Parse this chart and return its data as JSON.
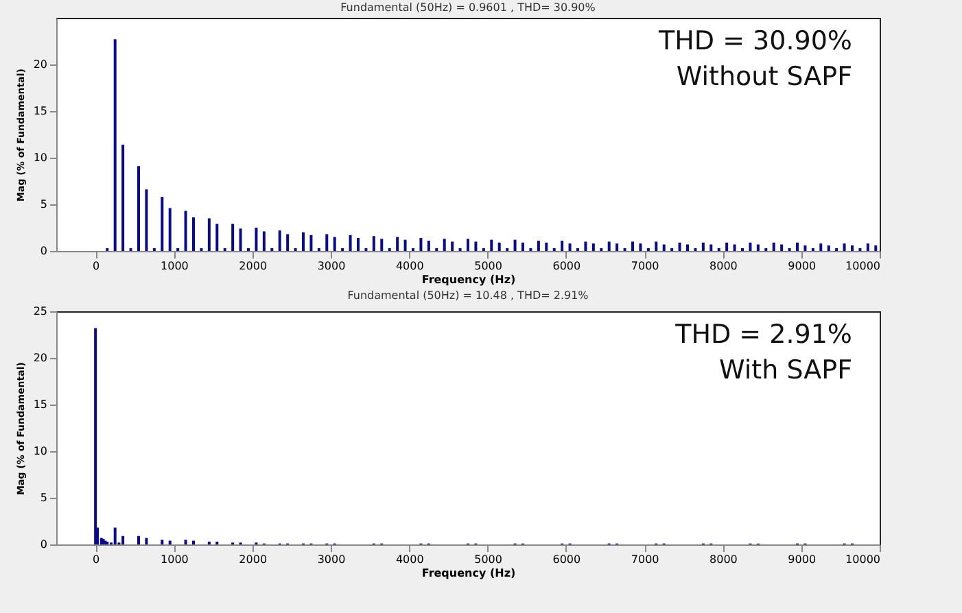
{
  "chart_data": [
    {
      "type": "bar",
      "title": "Fundamental (50Hz) = 0.9601 , THD= 30.90%",
      "xlabel": "Frequency (Hz)",
      "ylabel": "Mag (% of Fundamental)",
      "color": "#0a0a8c",
      "x": [
        150,
        250,
        350,
        450,
        550,
        650,
        750,
        850,
        950,
        1050,
        1150,
        1250,
        1350,
        1450,
        1550,
        1650,
        1750,
        1850,
        1950,
        2050,
        2150,
        2250,
        2350,
        2450,
        2550,
        2650,
        2750,
        2850,
        2950,
        3050,
        3150,
        3250,
        3350,
        3450,
        3550,
        3650,
        3750,
        3850,
        3950,
        4050,
        4150,
        4250,
        4350,
        4450,
        4550,
        4650,
        4750,
        4850,
        4950,
        5050,
        5150,
        5250,
        5350,
        5450,
        5550,
        5650,
        5750,
        5850,
        5950,
        6050,
        6150,
        6250,
        6350,
        6450,
        6550,
        6650,
        6750,
        6850,
        6950,
        7050,
        7150,
        7250,
        7350,
        7450,
        7550,
        7650,
        7750,
        7850,
        7950,
        8050,
        8150,
        8250,
        8350,
        8450,
        8550,
        8650,
        8750,
        8850,
        8950,
        9050,
        9150,
        9250,
        9350,
        9450,
        9550,
        9650,
        9750,
        9850,
        9950
      ],
      "values": [
        0.3,
        22.7,
        11.4,
        0.3,
        9.1,
        6.6,
        0.3,
        5.8,
        4.6,
        0.3,
        4.3,
        3.6,
        0.3,
        3.5,
        2.9,
        0.3,
        2.9,
        2.4,
        0.3,
        2.5,
        2.1,
        0.3,
        2.2,
        1.8,
        0.3,
        2.0,
        1.7,
        0.3,
        1.8,
        1.5,
        0.3,
        1.7,
        1.4,
        0.3,
        1.6,
        1.3,
        0.3,
        1.5,
        1.2,
        0.3,
        1.4,
        1.1,
        0.3,
        1.3,
        1.0,
        0.3,
        1.3,
        1.0,
        0.3,
        1.2,
        0.9,
        0.3,
        1.2,
        0.9,
        0.3,
        1.1,
        0.9,
        0.3,
        1.1,
        0.8,
        0.3,
        1.0,
        0.8,
        0.3,
        1.0,
        0.8,
        0.3,
        1.0,
        0.8,
        0.3,
        1.0,
        0.7,
        0.3,
        0.9,
        0.7,
        0.3,
        0.9,
        0.7,
        0.3,
        0.9,
        0.7,
        0.3,
        0.9,
        0.7,
        0.3,
        0.9,
        0.7,
        0.3,
        0.9,
        0.6,
        0.3,
        0.8,
        0.6,
        0.3,
        0.8,
        0.6,
        0.3,
        0.8,
        0.6
      ],
      "xlim": [
        -500,
        10000
      ],
      "xticks": [
        0,
        1000,
        2000,
        3000,
        4000,
        5000,
        6000,
        7000,
        8000,
        9000,
        10000
      ],
      "ylim": [
        0,
        25
      ],
      "yticks": [
        0,
        5,
        10,
        15,
        20
      ],
      "annotations": [
        "THD = 30.90%",
        "Without SAPF"
      ]
    },
    {
      "type": "bar",
      "title": "Fundamental (50Hz) = 10.48 , THD= 2.91%",
      "xlabel": "Frequency (Hz)",
      "ylabel": "Mag (% of Fundamental)",
      "color": "#0a0a8c",
      "x": [
        0,
        25,
        75,
        100,
        125,
        150,
        200,
        250,
        300,
        350,
        550,
        650,
        850,
        950,
        1150,
        1250,
        1450,
        1550,
        1750,
        1850,
        2050,
        2150,
        2350,
        2450,
        2650,
        2750,
        2950,
        3050,
        3550,
        3650,
        4150,
        4250,
        4750,
        4850,
        5350,
        5450,
        5950,
        6050,
        6550,
        6650,
        7150,
        7250,
        7750,
        7850,
        8350,
        8450,
        8950,
        9050,
        9550,
        9650
      ],
      "values": [
        23.2,
        1.8,
        0.7,
        0.6,
        0.4,
        0.3,
        0.2,
        1.8,
        0.2,
        0.9,
        0.9,
        0.7,
        0.5,
        0.4,
        0.5,
        0.4,
        0.3,
        0.3,
        0.2,
        0.2,
        0.2,
        0.1,
        0.1,
        0.1,
        0.1,
        0.1,
        0.1,
        0.1,
        0.1,
        0.1,
        0.1,
        0.1,
        0.1,
        0.1,
        0.1,
        0.1,
        0.1,
        0.1,
        0.1,
        0.1,
        0.1,
        0.1,
        0.1,
        0.1,
        0.1,
        0.1,
        0.1,
        0.1,
        0.1,
        0.1
      ],
      "xlim": [
        -500,
        10000
      ],
      "xticks": [
        0,
        1000,
        2000,
        3000,
        4000,
        5000,
        6000,
        7000,
        8000,
        9000,
        10000
      ],
      "ylim": [
        0,
        25
      ],
      "yticks": [
        0,
        5,
        10,
        15,
        20,
        25
      ],
      "annotations": [
        "THD = 2.91%",
        "With SAPF"
      ]
    }
  ]
}
